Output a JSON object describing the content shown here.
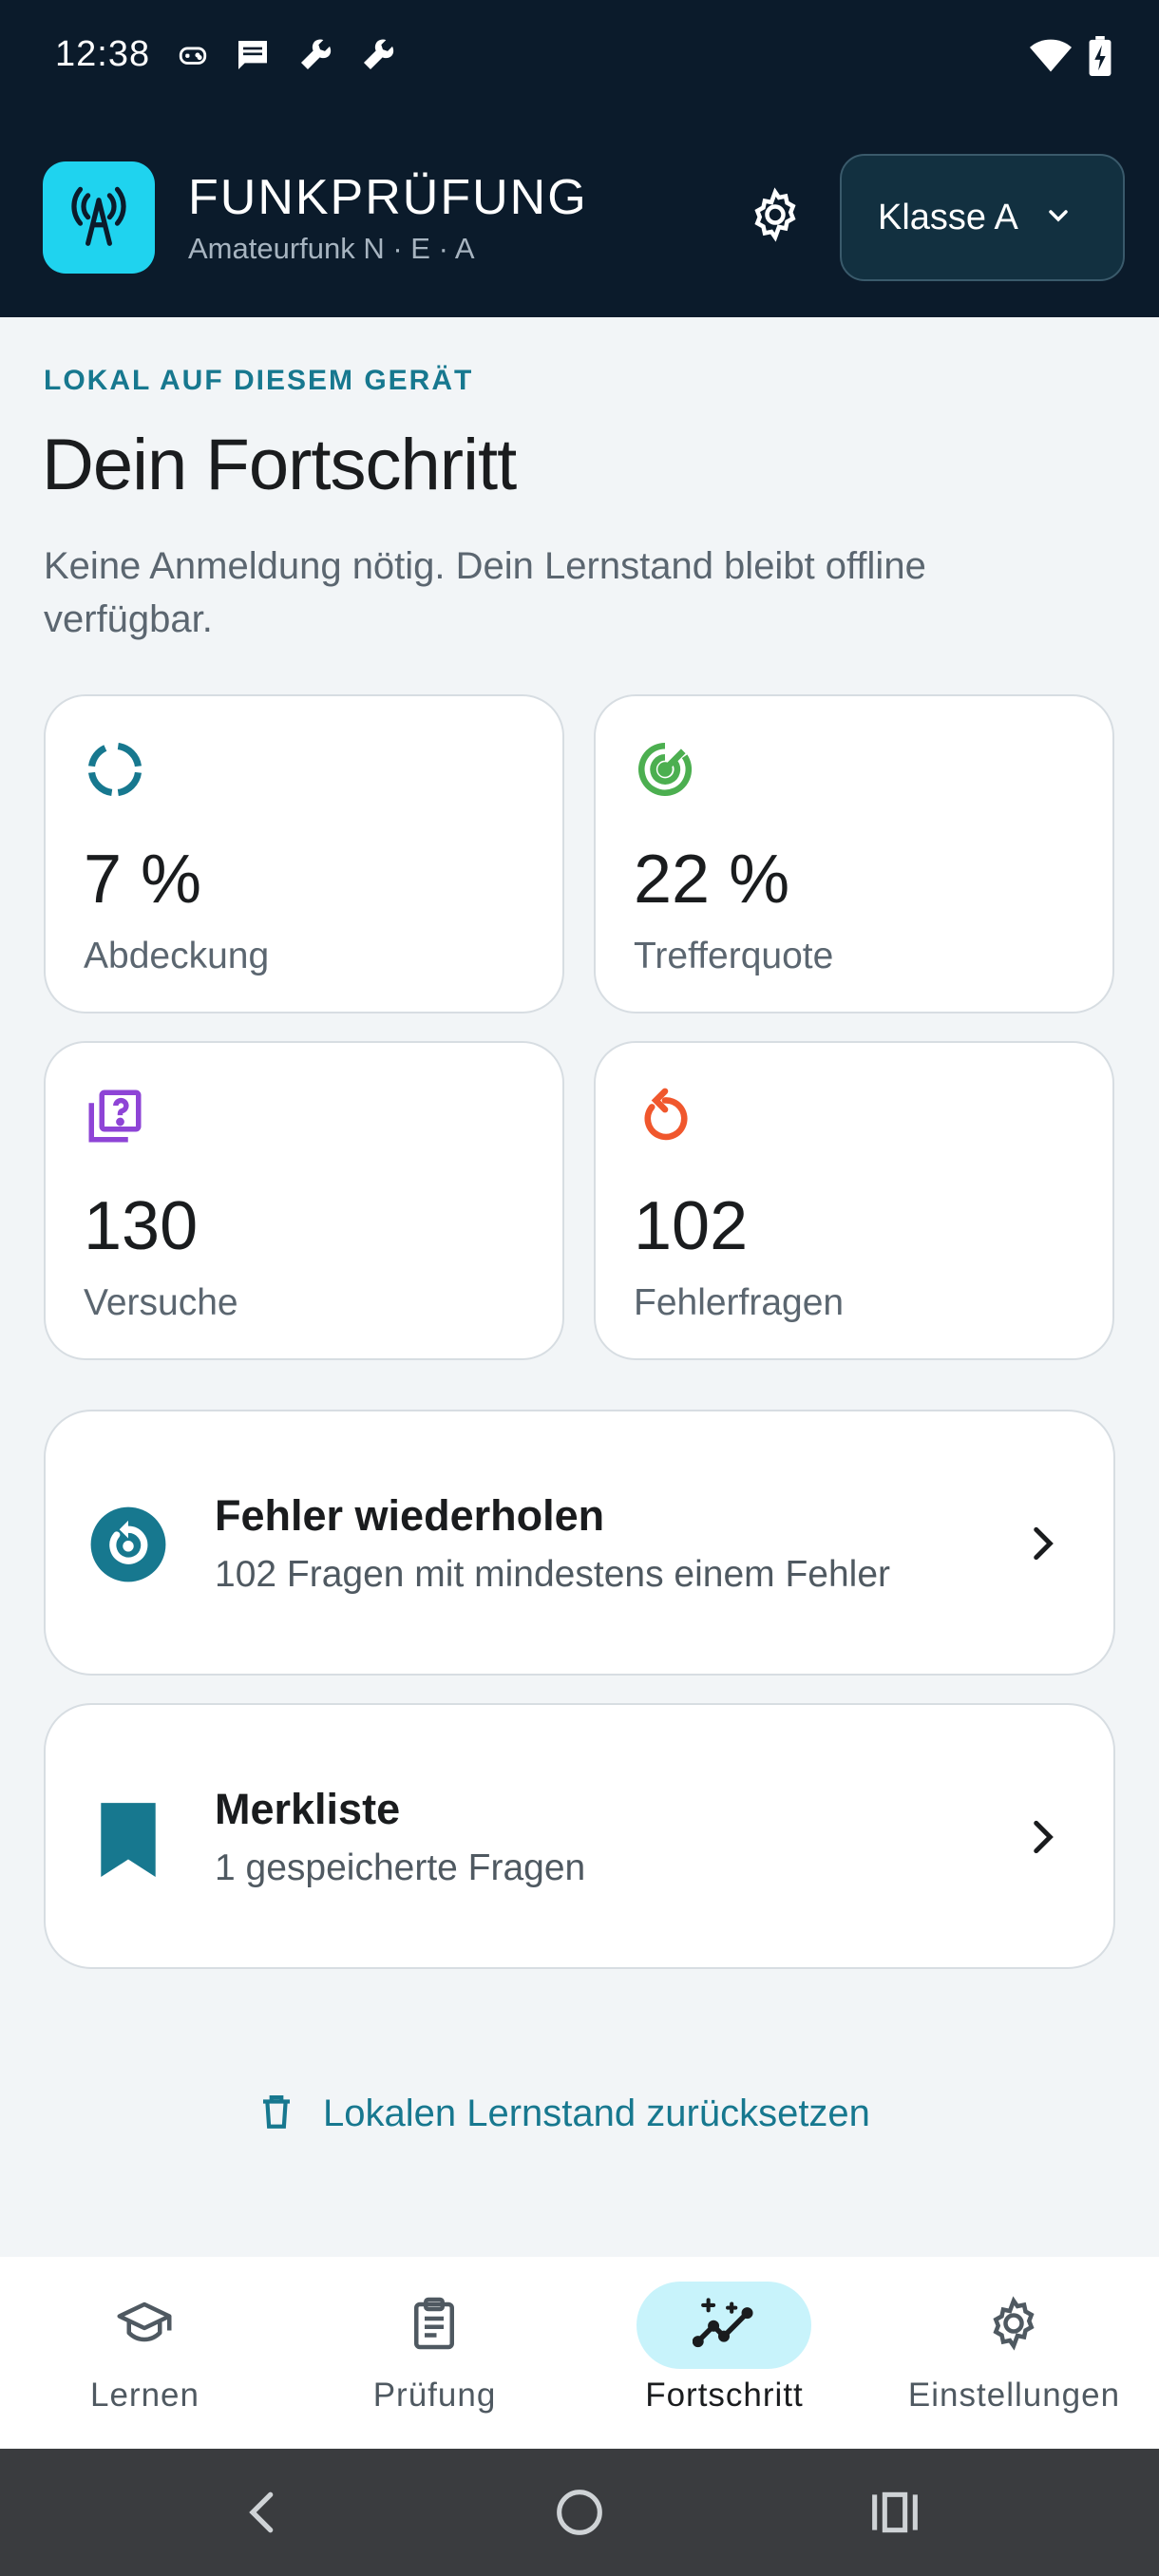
{
  "status_bar": {
    "time": "12:38",
    "icons": [
      "gamepad-icon",
      "message-icon",
      "wrench-icon",
      "wrench-icon",
      "wifi-icon",
      "battery-charging-icon"
    ]
  },
  "app_bar": {
    "title": "FUNKPRÜFUNG",
    "subtitle": "Amateurfunk N · E · A",
    "class_selector": "Klasse A"
  },
  "progress": {
    "eyebrow": "LOKAL AUF DIESEM GERÄT",
    "heading": "Dein Fortschritt",
    "lead": "Keine Anmeldung nötig. Dein Lernstand bleibt offline verfügbar."
  },
  "stats": [
    {
      "value": "7 %",
      "label": "Abdeckung",
      "icon": "progress-ring-icon",
      "color": "#17788f"
    },
    {
      "value": "22 %",
      "label": "Trefferquote",
      "icon": "target-icon",
      "color": "#4caf50"
    },
    {
      "value": "130",
      "label": "Versuche",
      "icon": "quiz-icon",
      "color": "#8e44d6"
    },
    {
      "value": "102",
      "label": "Fehlerfragen",
      "icon": "replay-icon",
      "color": "#f0572d"
    }
  ],
  "actions": [
    {
      "title": "Fehler wiederholen",
      "subtitle": "102 Fragen mit mindestens einem Fehler",
      "icon": "replay-circle-icon"
    },
    {
      "title": "Merkliste",
      "subtitle": "1 gespeicherte Fragen",
      "icon": "bookmark-icon"
    }
  ],
  "reset": {
    "label": "Lokalen Lernstand zurücksetzen"
  },
  "bottom_nav": [
    {
      "label": "Lernen",
      "icon": "school-icon",
      "active": false
    },
    {
      "label": "Prüfung",
      "icon": "clipboard-icon",
      "active": false
    },
    {
      "label": "Fortschritt",
      "icon": "insights-icon",
      "active": true
    },
    {
      "label": "Einstellungen",
      "icon": "gear-icon",
      "active": false
    }
  ],
  "colors": {
    "header_bg": "#0b1b2b",
    "accent": "#17788f",
    "logo_bg": "#1fd3ef",
    "active_nav": "#c8f3fb"
  }
}
